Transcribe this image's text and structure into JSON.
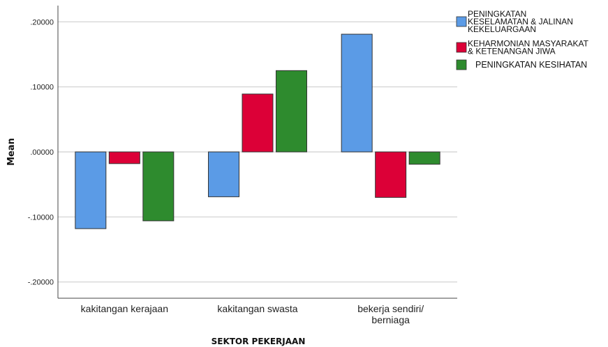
{
  "chart_data": {
    "type": "bar",
    "xlabel": "SEKTOR PEKERJAAN",
    "ylabel": "Mean",
    "ylim": [
      -0.225,
      0.225
    ],
    "yticks": [
      0.2,
      0.1,
      0.0,
      -0.1,
      -0.2
    ],
    "ytick_labels": [
      ".20000",
      ".10000",
      ".00000",
      "-.10000",
      "-.20000"
    ],
    "grid": true,
    "legend_position": "top-right",
    "categories": [
      [
        "kakitangan kerajaan"
      ],
      [
        "kakitangan swasta"
      ],
      [
        "bekerja sendiri/",
        "berniaga"
      ]
    ],
    "series": [
      {
        "name": [
          "PENINGKATAN",
          "KESELAMATAN & JALINAN",
          "KEKELUARGAAN"
        ],
        "color": "#5b9be6",
        "values": [
          -0.118,
          -0.069,
          0.181
        ]
      },
      {
        "name": [
          "KEHARMONIAN MASYARAKAT",
          "& KETENANGAN JIWA"
        ],
        "color": "#dc0037",
        "values": [
          -0.018,
          0.089,
          -0.07
        ]
      },
      {
        "name": [
          "PENINGKATAN KESIHATAN"
        ],
        "color": "#2e8b2e",
        "values": [
          -0.106,
          0.125,
          -0.019
        ]
      }
    ]
  }
}
